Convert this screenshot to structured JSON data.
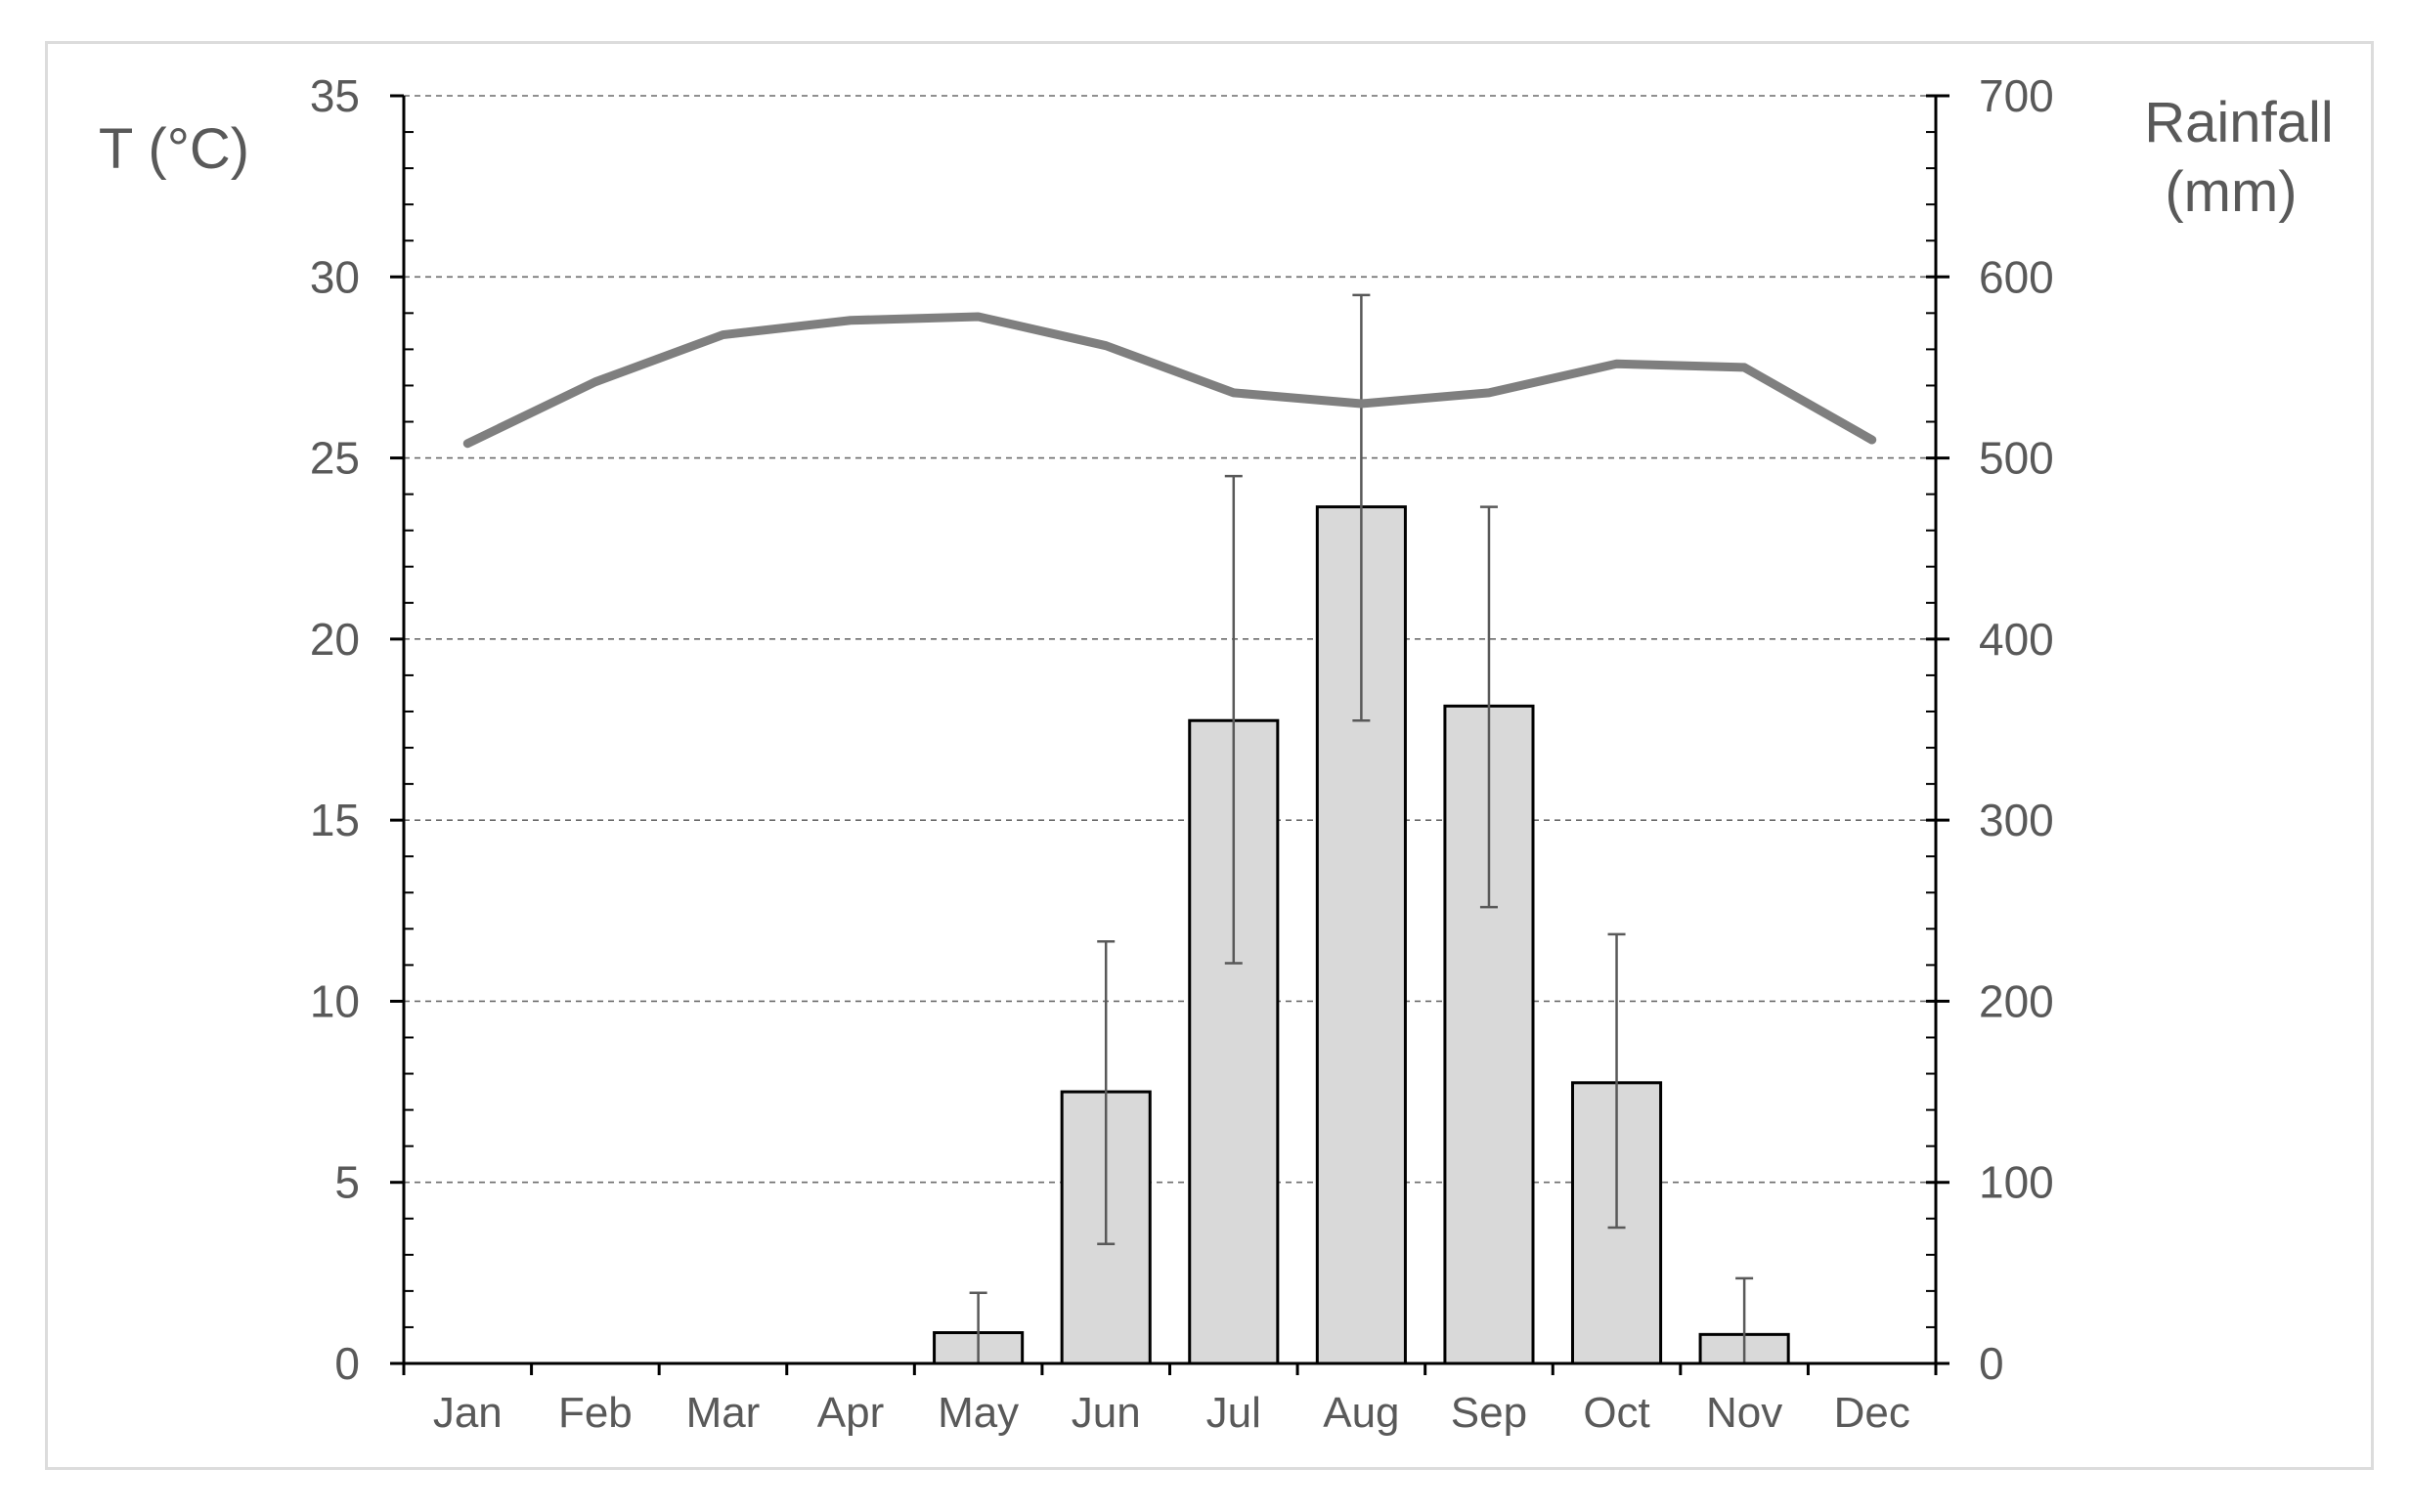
{
  "chart_data": {
    "type": "bar",
    "title": "",
    "categories": [
      "Jan",
      "Feb",
      "Mar",
      "Apr",
      "May",
      "Jun",
      "Jul",
      "Aug",
      "Sep",
      "Oct",
      "Nov",
      "Dec"
    ],
    "y_left": {
      "label": "T (°C)",
      "range": [
        0,
        35
      ],
      "ticks": [
        0,
        5,
        10,
        15,
        20,
        25,
        30,
        35
      ]
    },
    "y_right": {
      "label_line1": "Rainfall",
      "label_line2": "(mm)",
      "range": [
        0,
        700
      ],
      "ticks": [
        0,
        100,
        200,
        300,
        400,
        500,
        600,
        700
      ]
    },
    "series": [
      {
        "type": "bar",
        "axis": "right",
        "values": [
          0,
          0,
          0,
          0,
          17,
          150,
          355,
          473,
          363,
          155,
          16,
          0
        ],
        "error_low": [
          0,
          0,
          0,
          0,
          0,
          66,
          221,
          355,
          252,
          75,
          0,
          0
        ],
        "error_high": [
          0,
          0,
          0,
          0,
          39,
          233,
          490,
          590,
          473,
          237,
          47,
          0
        ],
        "fill": "#d9d9d9"
      },
      {
        "type": "line",
        "axis": "left",
        "values": [
          25.4,
          27.1,
          28.4,
          28.8,
          28.9,
          28.1,
          26.8,
          26.5,
          26.8,
          27.6,
          27.5,
          25.5
        ],
        "color": "#7f7f7f"
      }
    ],
    "grid": true,
    "legend": "none"
  }
}
